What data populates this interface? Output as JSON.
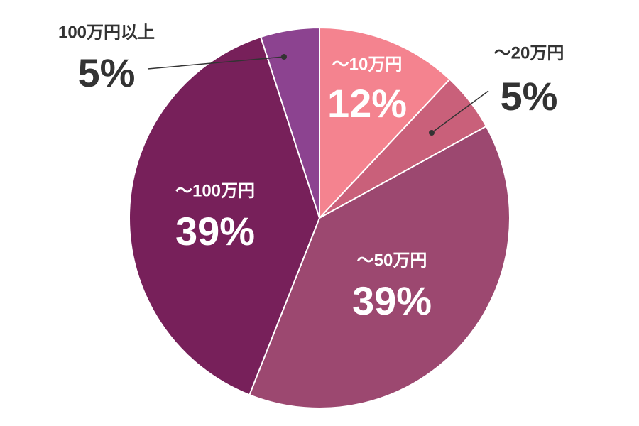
{
  "chart_data": {
    "type": "pie",
    "categories": [
      "～10万円",
      "～20万円",
      "～50万円",
      "～100万円",
      "100万円以上"
    ],
    "values": [
      12,
      5,
      39,
      39,
      5
    ],
    "value_labels": [
      "12%",
      "5%",
      "39%",
      "39%",
      "5%"
    ],
    "colors": [
      "#f4838f",
      "#c9607a",
      "#9c4870",
      "#77205a",
      "#8c4390"
    ]
  }
}
